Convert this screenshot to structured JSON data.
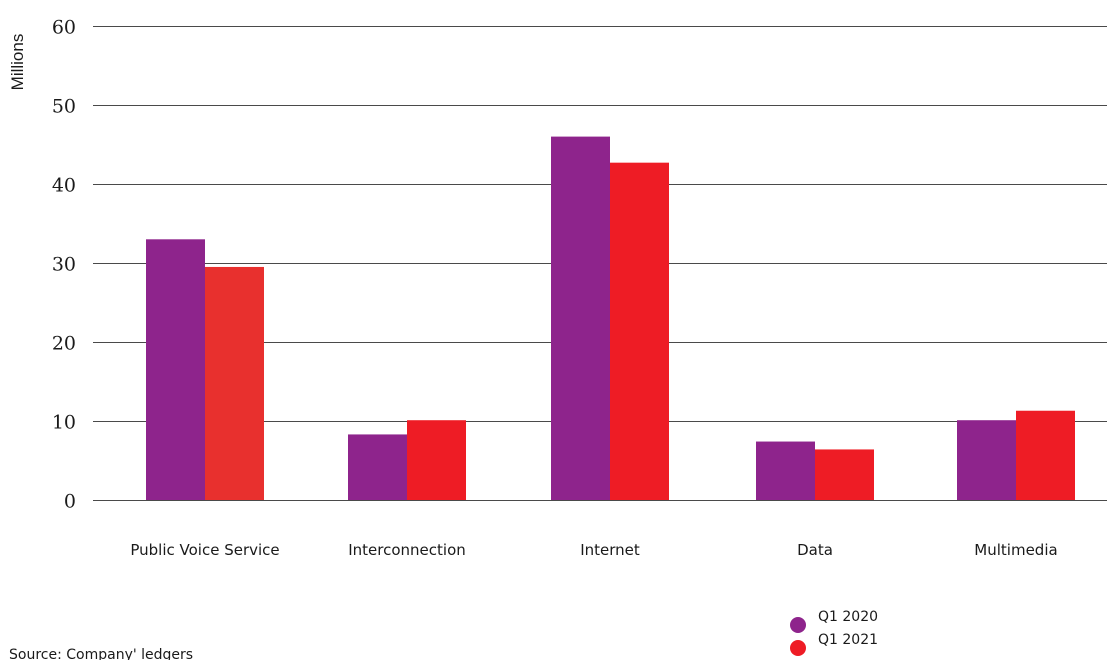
{
  "chart_data": {
    "type": "bar",
    "title": "",
    "xlabel": "",
    "ylabel": "Millions",
    "ylim": [
      0,
      60
    ],
    "yticks": [
      0,
      10,
      20,
      30,
      40,
      50,
      60
    ],
    "grid": true,
    "legend_position": "bottom-right",
    "categories": [
      "Public Voice Service",
      "Interconnection",
      "Internet",
      "Data",
      "Multimedia"
    ],
    "series": [
      {
        "name": "Q1 2020",
        "color": "#8e248c",
        "values": [
          33,
          8.3,
          46,
          7.4,
          10.1
        ]
      },
      {
        "name": "Q1 2021",
        "color": "#ee1c25",
        "values": [
          29.5,
          10.1,
          42.7,
          6.4,
          11.3
        ]
      }
    ],
    "point_colors": [
      {
        "series": 1,
        "index": 0,
        "color": "#e8302e"
      }
    ]
  },
  "footer": {
    "source": "Source: Company' ledgers"
  }
}
